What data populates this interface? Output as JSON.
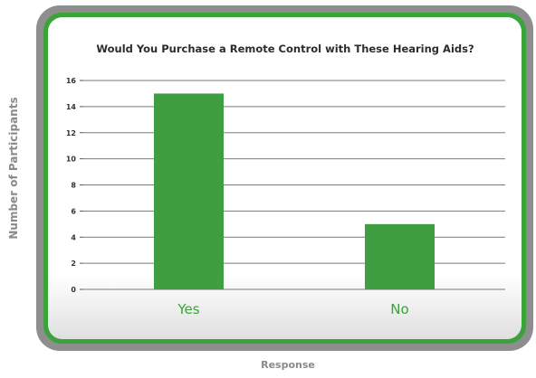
{
  "chart_data": {
    "type": "bar",
    "title": "Would You Purchase a Remote Control with These Hearing Aids?",
    "xlabel": "Response",
    "ylabel": "Number of Participants",
    "categories": [
      "Yes",
      "No"
    ],
    "values": [
      15,
      5
    ],
    "ylim": [
      0,
      16
    ],
    "yticks": [
      "0",
      "2",
      "4",
      "6",
      "8",
      "10",
      "12",
      "14",
      "16"
    ],
    "grid": true,
    "legend": "none",
    "bar_color": "#3f9e3f",
    "category_label_color": "#3aa33a",
    "frame_color": "#3aa33a"
  }
}
